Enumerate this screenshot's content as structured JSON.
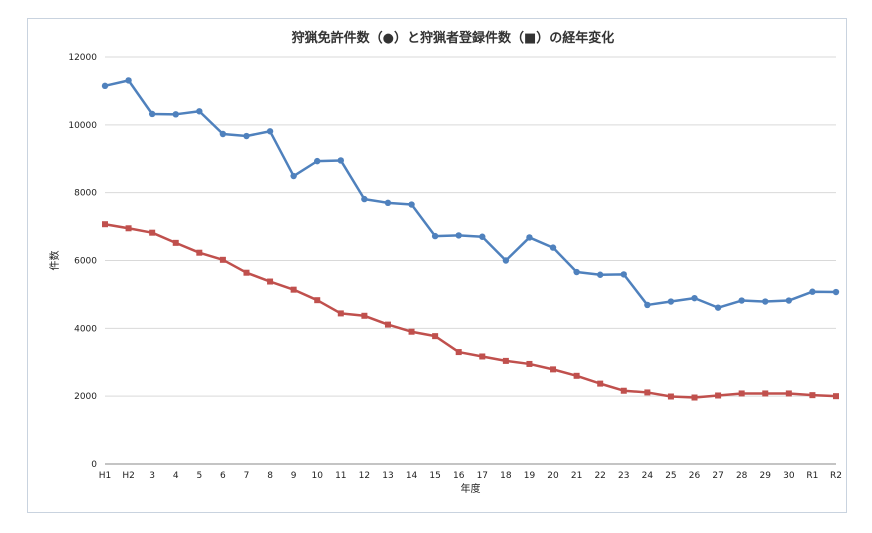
{
  "chart_data": {
    "type": "line",
    "title": "狩猟免許件数（●）と狩猟者登録件数（■）の経年変化",
    "xlabel": "年度",
    "ylabel": "件数",
    "ylim": [
      0,
      12000
    ],
    "yticks": [
      "0",
      "2000",
      "4000",
      "6000",
      "8000",
      "10000",
      "12000"
    ],
    "grid": true,
    "categories": [
      "H1",
      "H2",
      "3",
      "4",
      "5",
      "6",
      "7",
      "8",
      "9",
      "10",
      "11",
      "12",
      "13",
      "14",
      "15",
      "16",
      "17",
      "18",
      "19",
      "20",
      "21",
      "22",
      "23",
      "24",
      "25",
      "26",
      "27",
      "28",
      "29",
      "30",
      "R1",
      "R2"
    ],
    "series": [
      {
        "marker": "circle",
        "color": "#4f81bd",
        "values": [
          11150,
          11310,
          10320,
          10310,
          10400,
          9730,
          9670,
          9810,
          8490,
          8930,
          8950,
          7810,
          7700,
          7650,
          6720,
          6740,
          6700,
          6000,
          6680,
          6380,
          5660,
          5580,
          5590,
          4690,
          4790,
          4890,
          4610,
          4820,
          4790,
          4820,
          5080,
          5070
        ]
      },
      {
        "marker": "square",
        "color": "#c0504d",
        "values": [
          7070,
          6950,
          6820,
          6520,
          6230,
          6020,
          5640,
          5380,
          5140,
          4830,
          4440,
          4370,
          4110,
          3900,
          3770,
          3300,
          3170,
          3040,
          2950,
          2790,
          2600,
          2370,
          2160,
          2110,
          1990,
          1960,
          2020,
          2080,
          2080,
          2080,
          2030,
          2000
        ]
      }
    ]
  }
}
